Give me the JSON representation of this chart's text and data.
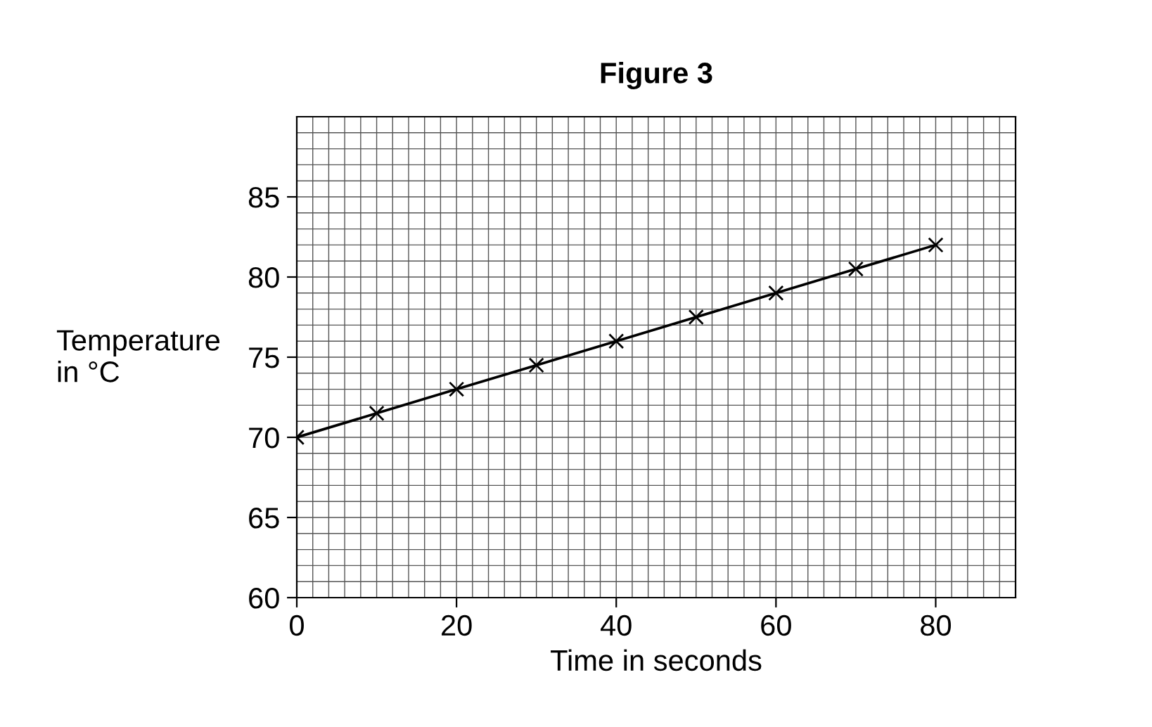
{
  "chart_data": {
    "type": "line",
    "title": "Figure 3",
    "xlabel": "Time in seconds",
    "ylabel": "Temperature\nin °C",
    "x": [
      0,
      10,
      20,
      30,
      40,
      50,
      60,
      70,
      80
    ],
    "series": [
      {
        "color": "#000000",
        "values": [
          70,
          71.5,
          73,
          74.5,
          76,
          77.5,
          79,
          80.5,
          82
        ]
      }
    ],
    "xlim": [
      0,
      90
    ],
    "ylim": [
      60,
      90
    ],
    "xticks": [
      0,
      20,
      40,
      60,
      80
    ],
    "yticks": [
      60,
      65,
      70,
      75,
      80,
      85
    ],
    "grid": true,
    "marker": "cross",
    "line_style": "solid"
  }
}
